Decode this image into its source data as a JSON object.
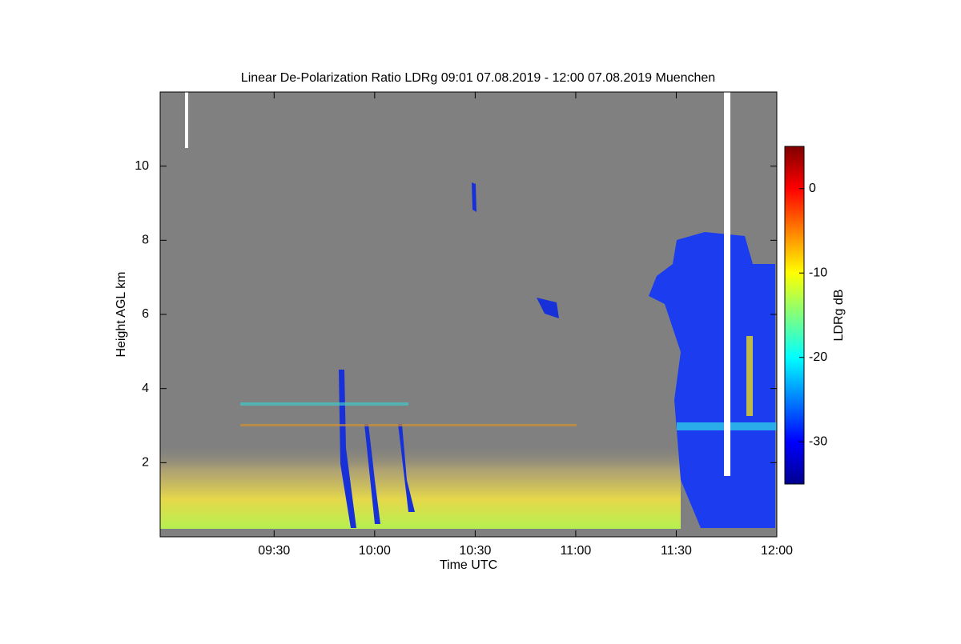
{
  "chart_data": {
    "type": "heatmap",
    "title": "Linear De-Polarization Ratio LDRg   09:01 07.08.2019 - 12:00 07.08.2019 Muenchen",
    "x_label": "Time UTC",
    "y_label": "Height AGL km",
    "colorbar_label": "LDRg dB",
    "xlim": [
      536,
      720
    ],
    "xticks": [
      {
        "value": 570,
        "label": "09:30"
      },
      {
        "value": 600,
        "label": "10:00"
      },
      {
        "value": 630,
        "label": "10:30"
      },
      {
        "value": 660,
        "label": "11:00"
      },
      {
        "value": 690,
        "label": "11:30"
      },
      {
        "value": 720,
        "label": "12:00"
      }
    ],
    "ylim": [
      0,
      12
    ],
    "yticks": [
      2,
      4,
      6,
      8,
      10
    ],
    "clim": [
      -35,
      5
    ],
    "cticks": [
      0,
      -10,
      -20,
      -30
    ],
    "colormap": "jet"
  }
}
